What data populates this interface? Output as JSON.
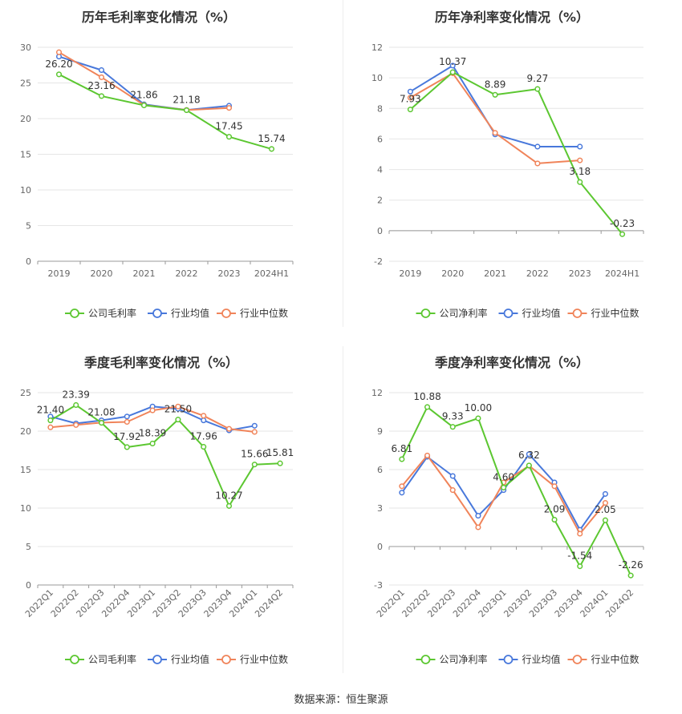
{
  "source_note": "数据来源：恒生聚源",
  "colors": {
    "company": "#5cc731",
    "industry_avg": "#4878db",
    "industry_median": "#f0845a",
    "grid": "#e6e6e6",
    "axis_text": "#666666",
    "title": "#333333"
  },
  "chart_data": [
    {
      "type": "line",
      "title": "历年毛利率变化情况（%）",
      "categories": [
        "2019",
        "2020",
        "2021",
        "2022",
        "2023",
        "2024H1"
      ],
      "ylim": [
        0,
        30
      ],
      "yticks": [
        0,
        5,
        10,
        15,
        20,
        25,
        30
      ],
      "grid": true,
      "legend_position": "bottom",
      "series": [
        {
          "name": "公司毛利率",
          "role": "company",
          "labels": true,
          "values": [
            26.2,
            23.16,
            21.86,
            21.18,
            17.45,
            15.74
          ]
        },
        {
          "name": "行业均值",
          "role": "industry_avg",
          "values": [
            28.7,
            26.8,
            22.0,
            21.2,
            21.8,
            null
          ]
        },
        {
          "name": "行业中位数",
          "role": "industry_median",
          "values": [
            29.3,
            25.8,
            21.9,
            21.2,
            21.5,
            null
          ]
        }
      ]
    },
    {
      "type": "line",
      "title": "历年净利率变化情况（%）",
      "categories": [
        "2019",
        "2020",
        "2021",
        "2022",
        "2023",
        "2024H1"
      ],
      "ylim": [
        -2,
        12
      ],
      "yticks": [
        -2,
        0,
        2,
        4,
        6,
        8,
        10,
        12
      ],
      "grid": true,
      "legend_position": "bottom",
      "series": [
        {
          "name": "公司净利率",
          "role": "company",
          "labels": true,
          "values": [
            7.93,
            10.37,
            8.89,
            9.27,
            3.18,
            -0.23
          ]
        },
        {
          "name": "行业均值",
          "role": "industry_avg",
          "values": [
            9.1,
            10.8,
            6.3,
            5.5,
            5.5,
            null
          ]
        },
        {
          "name": "行业中位数",
          "role": "industry_median",
          "values": [
            8.7,
            10.3,
            6.4,
            4.4,
            4.6,
            null
          ]
        }
      ]
    },
    {
      "type": "line",
      "title": "季度毛利率变化情况（%）",
      "categories": [
        "2022Q1",
        "2022Q2",
        "2022Q3",
        "2022Q4",
        "2023Q1",
        "2023Q2",
        "2023Q3",
        "2023Q4",
        "2024Q1",
        "2024Q2"
      ],
      "ylim": [
        0,
        25
      ],
      "yticks": [
        0,
        5,
        10,
        15,
        20,
        25
      ],
      "grid": true,
      "legend_position": "bottom",
      "series": [
        {
          "name": "公司毛利率",
          "role": "company",
          "labels": true,
          "values": [
            21.4,
            23.39,
            21.08,
            17.92,
            18.39,
            21.5,
            17.96,
            10.27,
            15.66,
            15.81
          ]
        },
        {
          "name": "行业均值",
          "role": "industry_avg",
          "values": [
            21.9,
            21.0,
            21.4,
            21.9,
            23.2,
            22.9,
            21.4,
            20.1,
            20.7,
            null
          ]
        },
        {
          "name": "行业中位数",
          "role": "industry_median",
          "values": [
            20.5,
            20.8,
            21.1,
            21.2,
            22.7,
            23.2,
            22.0,
            20.3,
            19.9,
            null
          ]
        }
      ]
    },
    {
      "type": "line",
      "title": "季度净利率变化情况（%）",
      "categories": [
        "2022Q1",
        "2022Q2",
        "2022Q3",
        "2022Q4",
        "2023Q1",
        "2023Q2",
        "2023Q3",
        "2023Q4",
        "2024Q1",
        "2024Q2"
      ],
      "ylim": [
        -3,
        12
      ],
      "yticks": [
        -3,
        0,
        3,
        6,
        9,
        12
      ],
      "grid": true,
      "legend_position": "bottom",
      "series": [
        {
          "name": "公司净利率",
          "role": "company",
          "labels": true,
          "values": [
            6.81,
            10.88,
            9.33,
            10.0,
            4.6,
            6.32,
            2.09,
            -1.54,
            2.05,
            -2.26
          ]
        },
        {
          "name": "行业均值",
          "role": "industry_avg",
          "values": [
            4.2,
            7.0,
            5.5,
            2.4,
            4.4,
            7.2,
            5.0,
            1.3,
            4.1,
            null
          ]
        },
        {
          "name": "行业中位数",
          "role": "industry_median",
          "values": [
            4.7,
            7.1,
            4.4,
            1.5,
            5.0,
            6.3,
            4.7,
            1.0,
            3.4,
            null
          ]
        }
      ]
    }
  ]
}
